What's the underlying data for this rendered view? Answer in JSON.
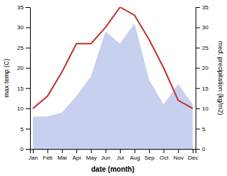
{
  "chart_data": {
    "type": "line",
    "categories": [
      "Jan",
      "Feb",
      "Mar",
      "Apr",
      "May",
      "Jun",
      "Jul",
      "Aug",
      "Sep",
      "Oct",
      "Nov",
      "Dec"
    ],
    "series": [
      {
        "type": "area",
        "axis": "y2",
        "color": "#c8d0f0",
        "values": [
          8,
          8,
          9,
          13,
          18,
          29,
          26,
          31,
          17,
          11,
          16,
          11
        ]
      },
      {
        "type": "line",
        "color": "#c03030",
        "values": [
          10,
          13,
          19,
          26,
          26,
          30,
          35,
          33,
          27,
          20,
          12,
          10
        ]
      }
    ],
    "x_label": "date (month)",
    "y_label": "max temp (C)",
    "y2_label": "med. precipitation (kg/m2)",
    "ylim": [
      0,
      35
    ],
    "yticks": [
      0,
      5,
      10,
      15,
      20,
      25,
      30,
      35
    ],
    "y2lim": [
      0,
      35
    ],
    "y2ticks": [
      0,
      5,
      10,
      15,
      20,
      25,
      30,
      35
    ],
    "grid": false
  }
}
